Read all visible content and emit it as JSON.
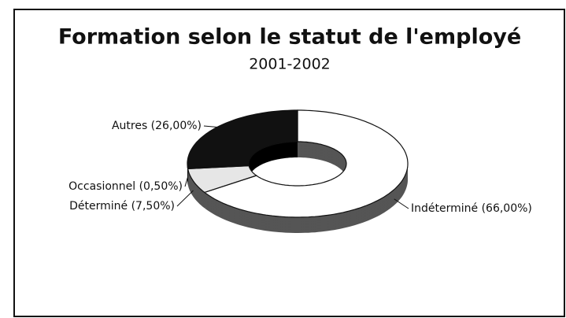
{
  "chart_data": {
    "type": "pie",
    "donut": true,
    "title": "Formation selon le statut de l'employé",
    "subtitle": "2001-2002",
    "values": [
      66,
      7.5,
      0.5,
      26
    ],
    "value_labels": [
      "Indéterminé (66,00%)",
      "Déterminé (7,50%)",
      "Occasionnel (0,50%)",
      "Autres (26,00%)"
    ],
    "colors": [
      "#ffffff",
      "#e6e6e6",
      "#111111",
      "#111111"
    ]
  }
}
